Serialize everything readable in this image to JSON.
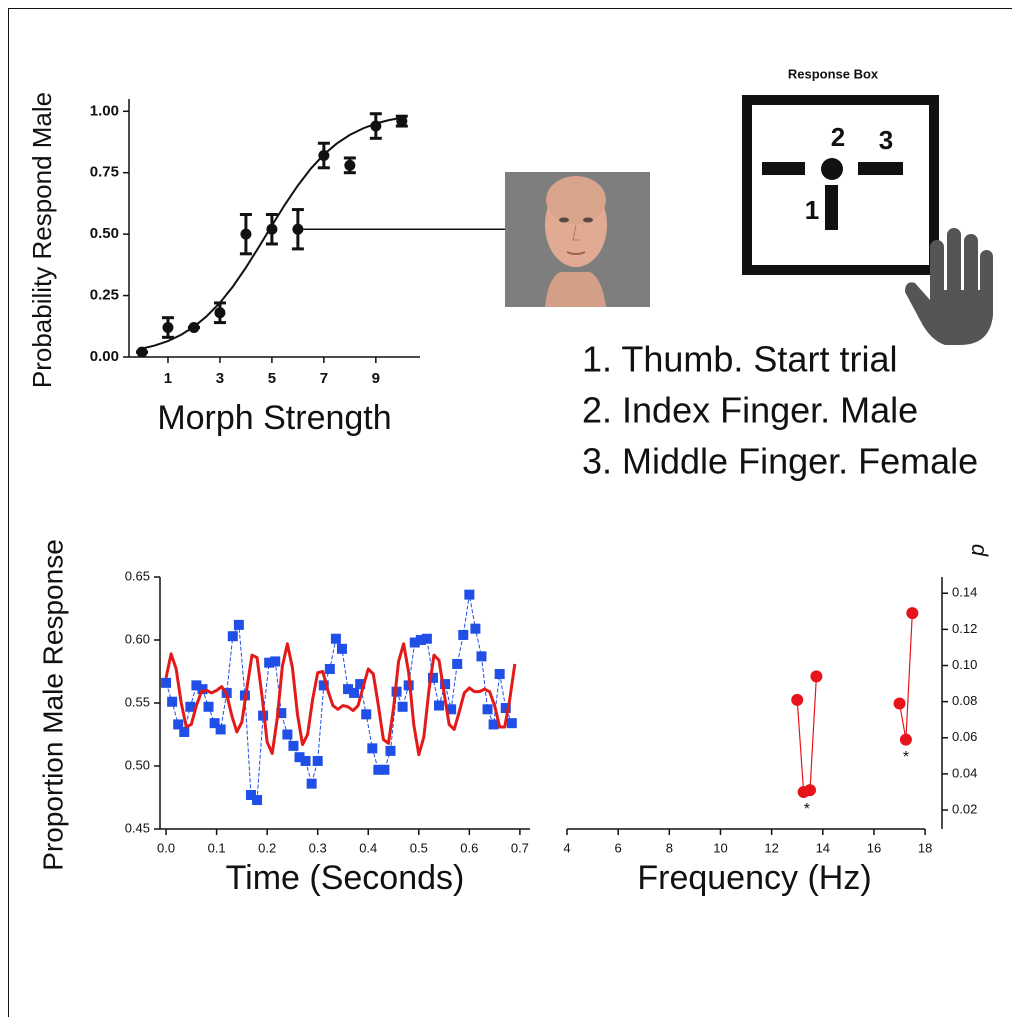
{
  "chart_data": [
    {
      "type": "scatter",
      "y_label": "Probability Respond Male",
      "x_label": "Morph Strength",
      "x": [
        0,
        1,
        2,
        3,
        4,
        5,
        6,
        7,
        8,
        9,
        10
      ],
      "values": [
        0.02,
        0.12,
        0.12,
        0.18,
        0.5,
        0.52,
        0.52,
        0.82,
        0.78,
        0.94,
        0.96
      ],
      "errors": [
        0,
        0.04,
        0,
        0.04,
        0.08,
        0.06,
        0.08,
        0.05,
        0.03,
        0.05,
        0.02
      ],
      "color": "#111111",
      "fit": {
        "x": [
          0,
          0.5,
          1,
          1.5,
          2,
          2.5,
          3,
          3.5,
          4,
          4.5,
          5,
          5.5,
          6,
          6.5,
          7,
          7.5,
          8,
          8.5,
          9,
          9.5,
          10
        ],
        "values": [
          0.034,
          0.047,
          0.065,
          0.09,
          0.123,
          0.167,
          0.221,
          0.287,
          0.364,
          0.448,
          0.535,
          0.62,
          0.698,
          0.767,
          0.824,
          0.869,
          0.904,
          0.93,
          0.95,
          0.964,
          0.974
        ]
      },
      "xlim": [
        -0.5,
        10.7
      ],
      "ylim": [
        0,
        1.05
      ],
      "xticks": [
        1,
        3,
        5,
        7,
        9
      ],
      "yticks": [
        {
          "value": 0,
          "label": "0.00"
        },
        {
          "value": 0.25,
          "label": "0.25"
        },
        {
          "value": 0.5,
          "label": "0.50"
        },
        {
          "value": 0.75,
          "label": "0.75"
        },
        {
          "value": 1,
          "label": "1.00"
        }
      ]
    },
    {
      "type": "line",
      "y_label": "Proportion Male Response",
      "x_label": "Time (Seconds)",
      "series": [
        {
          "color": "#1f4fe6",
          "marker": "square",
          "x": [
            0,
            0.012,
            0.024,
            0.036,
            0.048,
            0.06,
            0.072,
            0.084,
            0.096,
            0.108,
            0.12,
            0.132,
            0.144,
            0.156,
            0.168,
            0.18,
            0.192,
            0.204,
            0.216,
            0.228,
            0.24,
            0.252,
            0.264,
            0.276,
            0.288,
            0.3,
            0.312,
            0.324,
            0.336,
            0.348,
            0.36,
            0.372,
            0.384,
            0.396,
            0.408,
            0.42,
            0.432,
            0.444,
            0.456,
            0.468,
            0.48,
            0.492,
            0.504,
            0.516,
            0.528,
            0.54,
            0.552,
            0.564,
            0.576,
            0.588,
            0.6,
            0.612,
            0.624,
            0.636,
            0.648,
            0.66,
            0.672,
            0.684
          ],
          "values": [
            0.566,
            0.551,
            0.533,
            0.527,
            0.547,
            0.564,
            0.561,
            0.547,
            0.534,
            0.529,
            0.558,
            0.603,
            0.612,
            0.556,
            0.477,
            0.473,
            0.54,
            0.582,
            0.583,
            0.542,
            0.525,
            0.516,
            0.507,
            0.504,
            0.486,
            0.504,
            0.564,
            0.577,
            0.601,
            0.593,
            0.561,
            0.558,
            0.565,
            0.541,
            0.514,
            0.497,
            0.497,
            0.512,
            0.559,
            0.547,
            0.564,
            0.598,
            0.6,
            0.601,
            0.57,
            0.548,
            0.565,
            0.545,
            0.581,
            0.604,
            0.636,
            0.609,
            0.587,
            0.545,
            0.533,
            0.573,
            0.546,
            0.534
          ]
        },
        {
          "color": "#e31a1a",
          "marker": "none",
          "x": [
            0,
            0.01,
            0.02,
            0.03,
            0.04,
            0.05,
            0.06,
            0.07,
            0.08,
            0.09,
            0.1,
            0.11,
            0.12,
            0.13,
            0.14,
            0.15,
            0.16,
            0.17,
            0.18,
            0.19,
            0.2,
            0.21,
            0.22,
            0.23,
            0.24,
            0.25,
            0.26,
            0.27,
            0.28,
            0.29,
            0.3,
            0.31,
            0.32,
            0.33,
            0.34,
            0.35,
            0.36,
            0.37,
            0.38,
            0.39,
            0.4,
            0.41,
            0.42,
            0.43,
            0.44,
            0.45,
            0.46,
            0.47,
            0.48,
            0.49,
            0.5,
            0.51,
            0.52,
            0.53,
            0.54,
            0.55,
            0.56,
            0.57,
            0.58,
            0.59,
            0.6,
            0.61,
            0.62,
            0.63,
            0.64,
            0.65,
            0.66,
            0.67,
            0.68,
            0.69
          ],
          "values": [
            0.57,
            0.589,
            0.577,
            0.55,
            0.531,
            0.533,
            0.548,
            0.559,
            0.56,
            0.558,
            0.56,
            0.563,
            0.557,
            0.54,
            0.527,
            0.535,
            0.562,
            0.588,
            0.586,
            0.555,
            0.519,
            0.51,
            0.538,
            0.579,
            0.597,
            0.578,
            0.541,
            0.517,
            0.525,
            0.553,
            0.574,
            0.575,
            0.56,
            0.548,
            0.545,
            0.548,
            0.547,
            0.544,
            0.548,
            0.563,
            0.577,
            0.573,
            0.548,
            0.521,
            0.518,
            0.546,
            0.583,
            0.597,
            0.574,
            0.533,
            0.509,
            0.523,
            0.56,
            0.588,
            0.584,
            0.558,
            0.533,
            0.529,
            0.543,
            0.558,
            0.562,
            0.559,
            0.559,
            0.561,
            0.559,
            0.548,
            0.531,
            0.531,
            0.553,
            0.581
          ]
        }
      ],
      "xlim": [
        -0.012,
        0.72
      ],
      "ylim": [
        0.45,
        0.65
      ],
      "xticks": [
        {
          "value": 0,
          "label": "0.0"
        },
        0.1,
        0.2,
        0.3,
        0.4,
        0.5,
        0.6,
        0.7
      ],
      "yticks": [
        0.45,
        {
          "value": 0.5,
          "label": "0.50"
        },
        0.55,
        {
          "value": 0.6,
          "label": "0.60"
        },
        0.65
      ]
    },
    {
      "type": "scatter",
      "x_label": "Frequency (Hz)",
      "y_label": "p",
      "x": [
        13.0,
        13.25,
        13.5,
        13.75,
        17.0,
        17.25,
        17.5
      ],
      "values": [
        0.081,
        0.03,
        0.031,
        0.094,
        0.079,
        0.059,
        0.129
      ],
      "color": "#e8141c",
      "annotations": [
        "*",
        "*"
      ],
      "xlim": [
        4,
        18.66
      ],
      "ylim": [
        0.0095,
        0.149
      ],
      "xticks": [
        4,
        6,
        8,
        10,
        12,
        14,
        16,
        18
      ],
      "yticks": [
        0.02,
        0.04,
        0.06,
        0.08,
        {
          "value": 0.1,
          "label": "0.10"
        },
        0.12,
        0.14
      ]
    }
  ],
  "response_box": {
    "title": "Response Box",
    "buttons": [
      "1",
      "2",
      "3"
    ]
  },
  "instructions": [
    "1. Thumb. Start trial",
    "2. Index Finger. Male",
    "3. Middle Finger. Female"
  ]
}
